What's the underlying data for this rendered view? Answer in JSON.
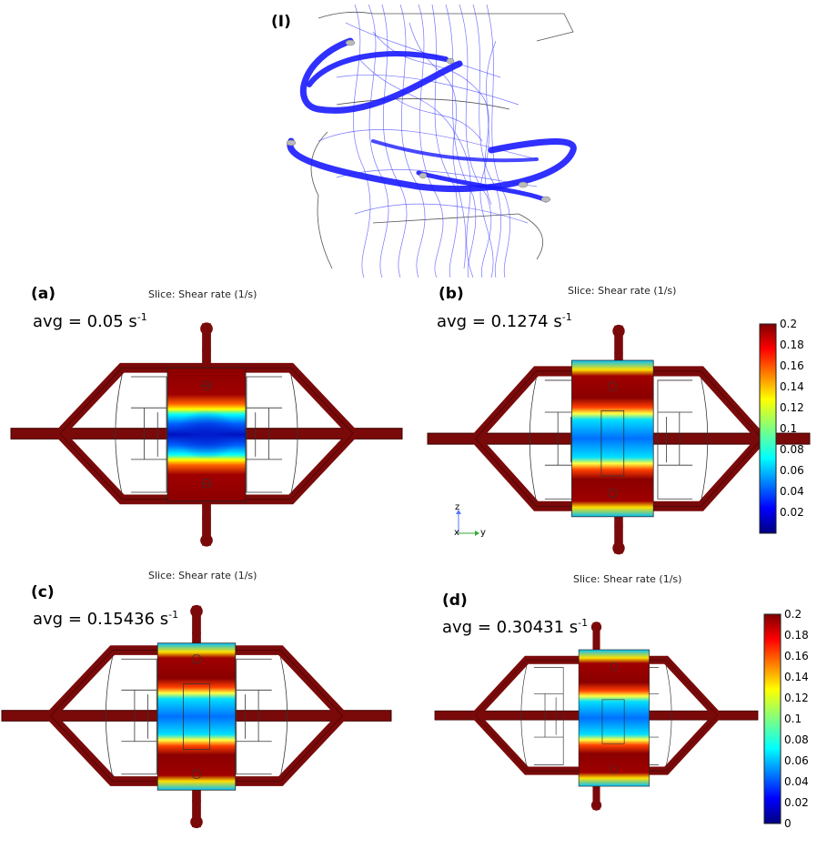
{
  "panel_top": {
    "label": "(I)"
  },
  "panels": [
    {
      "id": "a",
      "label": "(a)",
      "title": "Slice: Shear rate (1/s)",
      "avg_prefix": "avg = 0.05 s",
      "avg_sup": "-1"
    },
    {
      "id": "b",
      "label": "(b)",
      "title": "Slice: Shear rate (1/s)",
      "avg_prefix": "avg = 0.1274 s",
      "avg_sup": "-1"
    },
    {
      "id": "c",
      "label": "(c)",
      "title": "Slice: Shear rate (1/s)",
      "avg_prefix": "avg = 0.15436 s",
      "avg_sup": "-1"
    },
    {
      "id": "d",
      "label": "(d)",
      "title": "Slice: Shear rate (1/s)",
      "avg_prefix": "avg = 0.30431 s",
      "avg_sup": "-1"
    }
  ],
  "colorbar_b": {
    "ticks": [
      "0.2",
      "0.18",
      "0.16",
      "0.14",
      "0.12",
      "0.1",
      "0.08",
      "0.06",
      "0.04",
      "0.02"
    ]
  },
  "colorbar_d": {
    "ticks": [
      "0.2",
      "0.18",
      "0.16",
      "0.14",
      "0.12",
      "0.1",
      "0.08",
      "0.06",
      "0.04",
      "0.02",
      "0"
    ]
  },
  "axis_triad": {
    "z": "z",
    "y": "y",
    "x": "x"
  },
  "colors": {
    "tube": "#7a0a0a",
    "tube_edge": "#3d0000",
    "streamline": "#1a1aff",
    "hot": "#8b0000",
    "cold": "#00007f"
  }
}
